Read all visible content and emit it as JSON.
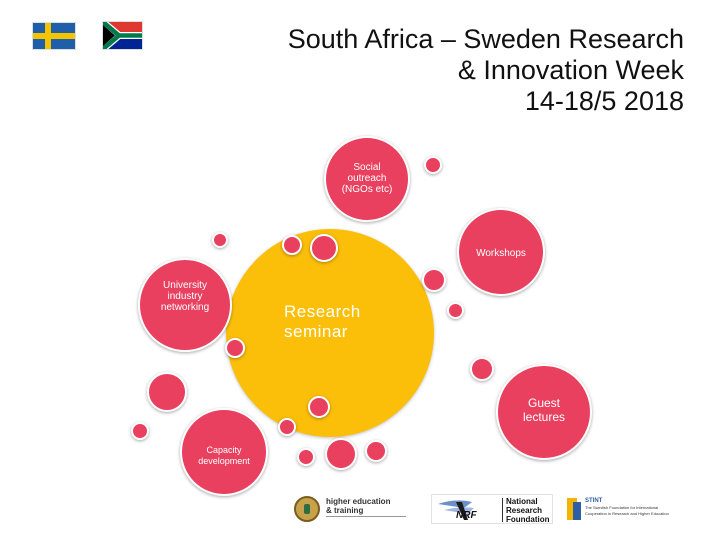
{
  "header": {
    "title_line1": "South Africa – Sweden Research",
    "title_line2": "& Innovation Week",
    "title_line3": "14-18/5 2018"
  },
  "colors": {
    "accent": "#e8405e",
    "center": "#fbbf0a"
  },
  "bubbles": {
    "center": "Research seminar",
    "social_1": "Social",
    "social_2": "outreach",
    "social_3": "(NGOs etc)",
    "workshops": "Workshops",
    "university_1": "University",
    "university_2": "industry",
    "university_3": "networking",
    "guest_1": "Guest",
    "guest_2": "lectures",
    "capacity_1": "Capacity",
    "capacity_2": "development"
  },
  "logos": {
    "dhet_line1": "higher education",
    "dhet_line2": "& training",
    "nrf_line1": "National",
    "nrf_line2": "Research",
    "nrf_line3": "Foundation",
    "nrf_mark": "NRF",
    "stint_name": "STINT",
    "stint_line1": "The Swedish Foundation for International",
    "stint_line2": "Cooperation in Research and Higher Education"
  }
}
